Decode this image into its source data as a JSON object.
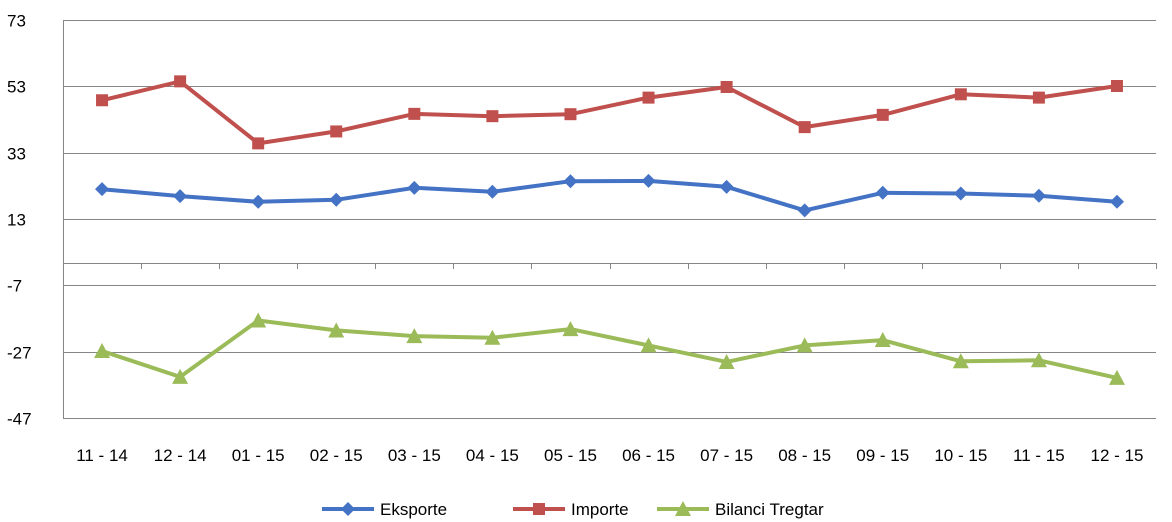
{
  "chart_data": {
    "type": "line",
    "title": "",
    "xlabel": "",
    "ylabel": "",
    "categories": [
      "11 - 14",
      "12 - 14",
      "01 - 15",
      "02 - 15",
      "03 - 15",
      "04 - 15",
      "05 - 15",
      "06 - 15",
      "07 - 15",
      "08 - 15",
      "09 - 15",
      "10 - 15",
      "11 - 15",
      "12 - 15"
    ],
    "ylim": [
      -47,
      73
    ],
    "yticks": [
      -47,
      -27,
      -7,
      13,
      33,
      53,
      73
    ],
    "grid": "horizontal",
    "legend_position": "bottom",
    "series": [
      {
        "name": "Eksporte",
        "color": "#4472C4",
        "marker": "diamond",
        "values": [
          22.0,
          19.9,
          18.2,
          18.8,
          22.4,
          21.2,
          24.4,
          24.5,
          22.7,
          15.6,
          20.9,
          20.7,
          20.0,
          18.2
        ]
      },
      {
        "name": "Importe",
        "color": "#C0504D",
        "marker": "square",
        "values": [
          48.8,
          54.5,
          35.8,
          39.4,
          44.7,
          44.0,
          44.6,
          49.6,
          52.8,
          40.7,
          44.4,
          50.6,
          49.6,
          53.1
        ]
      },
      {
        "name": "Bilanci Tregtar",
        "color": "#9BBB59",
        "marker": "triangle",
        "values": [
          -26.8,
          -34.6,
          -17.6,
          -20.6,
          -22.3,
          -22.8,
          -20.2,
          -25.1,
          -30.1,
          -25.1,
          -23.5,
          -29.9,
          -29.6,
          -34.9
        ]
      }
    ]
  }
}
